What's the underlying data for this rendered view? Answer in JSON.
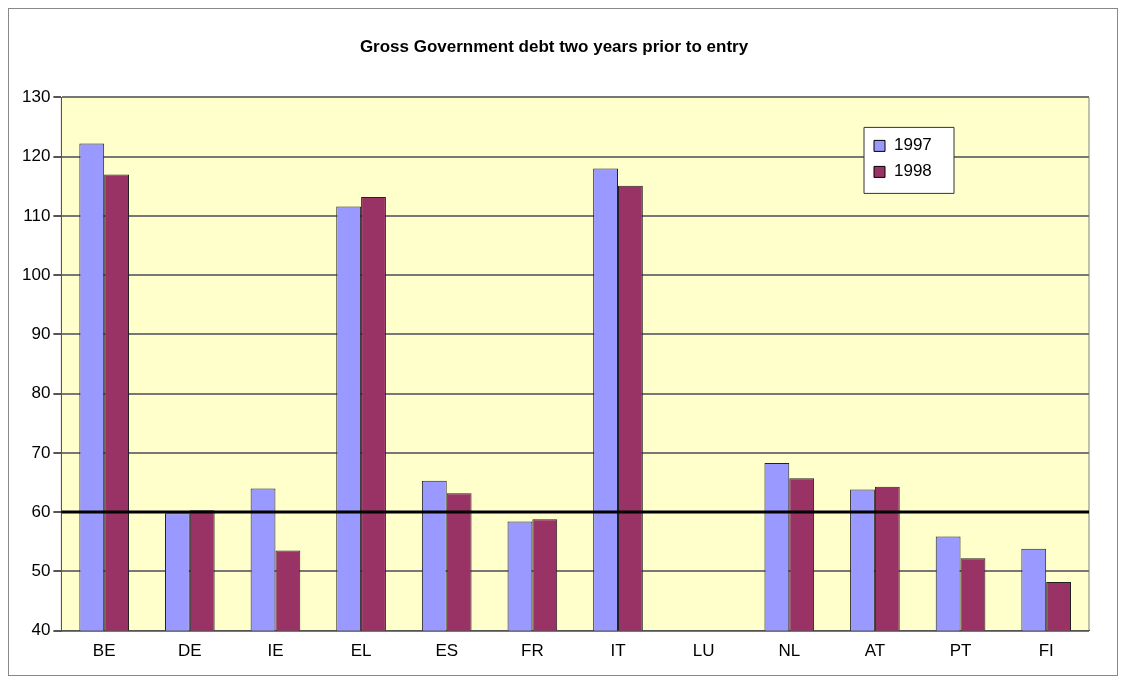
{
  "chart_data": {
    "type": "bar",
    "title": "Gross Government debt two years prior to entry",
    "categories": [
      "BE",
      "DE",
      "IE",
      "EL",
      "ES",
      "FR",
      "IT",
      "LU",
      "NL",
      "AT",
      "PT",
      "FI"
    ],
    "series": [
      {
        "name": "1997",
        "color": "#9999ff",
        "values": [
          122.2,
          59.8,
          64.0,
          111.6,
          65.3,
          58.4,
          118.0,
          null,
          68.3,
          63.8,
          55.9,
          53.8
        ]
      },
      {
        "name": "1998",
        "color": "#993366",
        "values": [
          117.0,
          60.3,
          53.5,
          113.2,
          63.2,
          58.8,
          115.1,
          null,
          65.7,
          64.3,
          52.2,
          48.2
        ]
      }
    ],
    "ylim": [
      40,
      130
    ],
    "yticks": [
      40,
      50,
      60,
      70,
      80,
      90,
      100,
      110,
      120,
      130
    ],
    "grid": "y",
    "legend": "top right",
    "ref_lines": [
      {
        "axis": "y",
        "value": 60,
        "color": "#000000"
      }
    ]
  }
}
